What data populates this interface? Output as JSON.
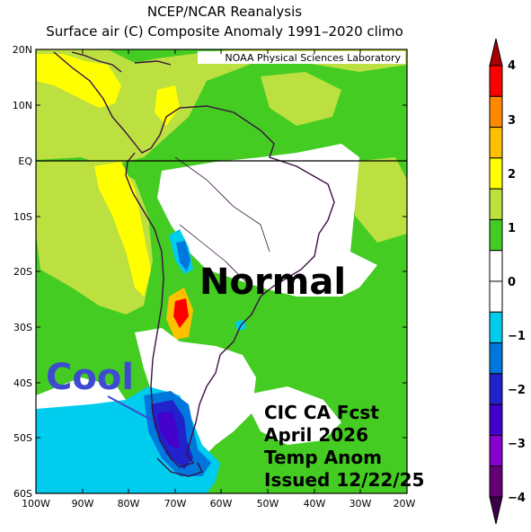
{
  "header": {
    "title": "NCEP/NCAR Reanalysis",
    "subtitle": "Surface air (C) Composite Anomaly 1991–2020 climo"
  },
  "map": {
    "credit": "NOAA Physical Sciences Laboratory",
    "lat_labels": [
      "20N",
      "10N",
      "EQ",
      "10S",
      "20S",
      "30S",
      "40S",
      "50S",
      "60S"
    ],
    "lon_labels": [
      "100W",
      "90W",
      "80W",
      "70W",
      "60W",
      "50W",
      "40W",
      "30W",
      "20W"
    ],
    "annotations": {
      "normal": "Normal",
      "cool": "Cool",
      "forecast_lines": [
        "CIC CA Fcst",
        "April 2026",
        "Temp Anom",
        "Issued 12/22/25"
      ]
    }
  },
  "colorbar": {
    "labels": [
      "4",
      "3",
      "2",
      "1",
      "0",
      "−1",
      "−2",
      "−3",
      "−4"
    ],
    "colors": [
      "#ff0000",
      "#ff8800",
      "#ffc000",
      "#ffff00",
      "#bbe040",
      "#44cc22",
      "#ffffff",
      "#ffffff",
      "#00ccee",
      "#0077dd",
      "#2222cc",
      "#4400cc",
      "#8800cc",
      "#660077"
    ]
  }
}
